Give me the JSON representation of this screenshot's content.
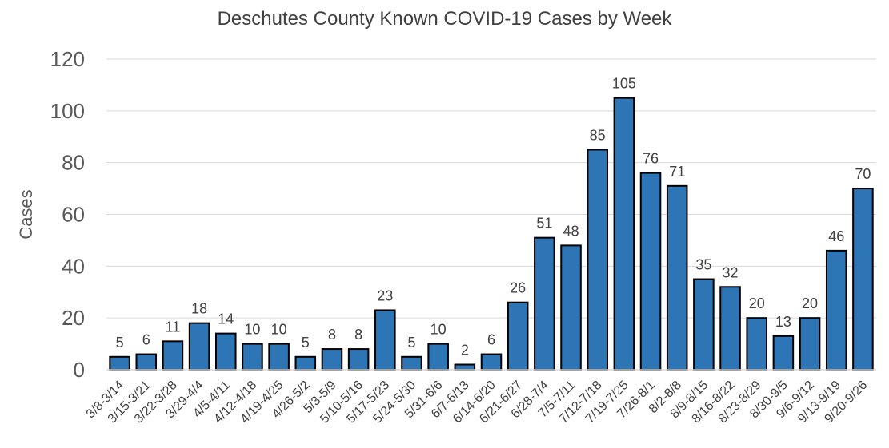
{
  "chart_data": {
    "type": "bar",
    "title": "Deschutes County Known COVID-19 Cases by Week",
    "xlabel": "",
    "ylabel": "Cases",
    "ylim": [
      0,
      120
    ],
    "yticks": [
      0,
      20,
      40,
      60,
      80,
      100,
      120
    ],
    "grid": true,
    "bar_color": "#2E75B6",
    "categories": [
      "3/8-3/14",
      "3/15-3/21",
      "3/22-3/28",
      "3/29-4/4",
      "4/5-4/11",
      "4/12-4/18",
      "4/19-4/25",
      "4/26-5/2",
      "5/3-5/9",
      "5/10-5/16",
      "5/17-5/23",
      "5/24-5/30",
      "5/31-6/6",
      "6/7-6/13",
      "6/14-6/20",
      "6/21-6/27",
      "6/28-7/4",
      "7/5-7/11",
      "7/12-7/18",
      "7/19-7/25",
      "7/26-8/1",
      "8/2-8/8",
      "8/9-8/15",
      "8/16-8/22",
      "8/23-8/29",
      "8/30-9/5",
      "9/6-9/12",
      "9/13-9/19",
      "9/20-9/26"
    ],
    "values": [
      5,
      6,
      11,
      18,
      14,
      10,
      10,
      5,
      8,
      8,
      23,
      5,
      10,
      2,
      6,
      26,
      51,
      48,
      85,
      105,
      76,
      71,
      35,
      32,
      20,
      13,
      20,
      46,
      70
    ]
  }
}
